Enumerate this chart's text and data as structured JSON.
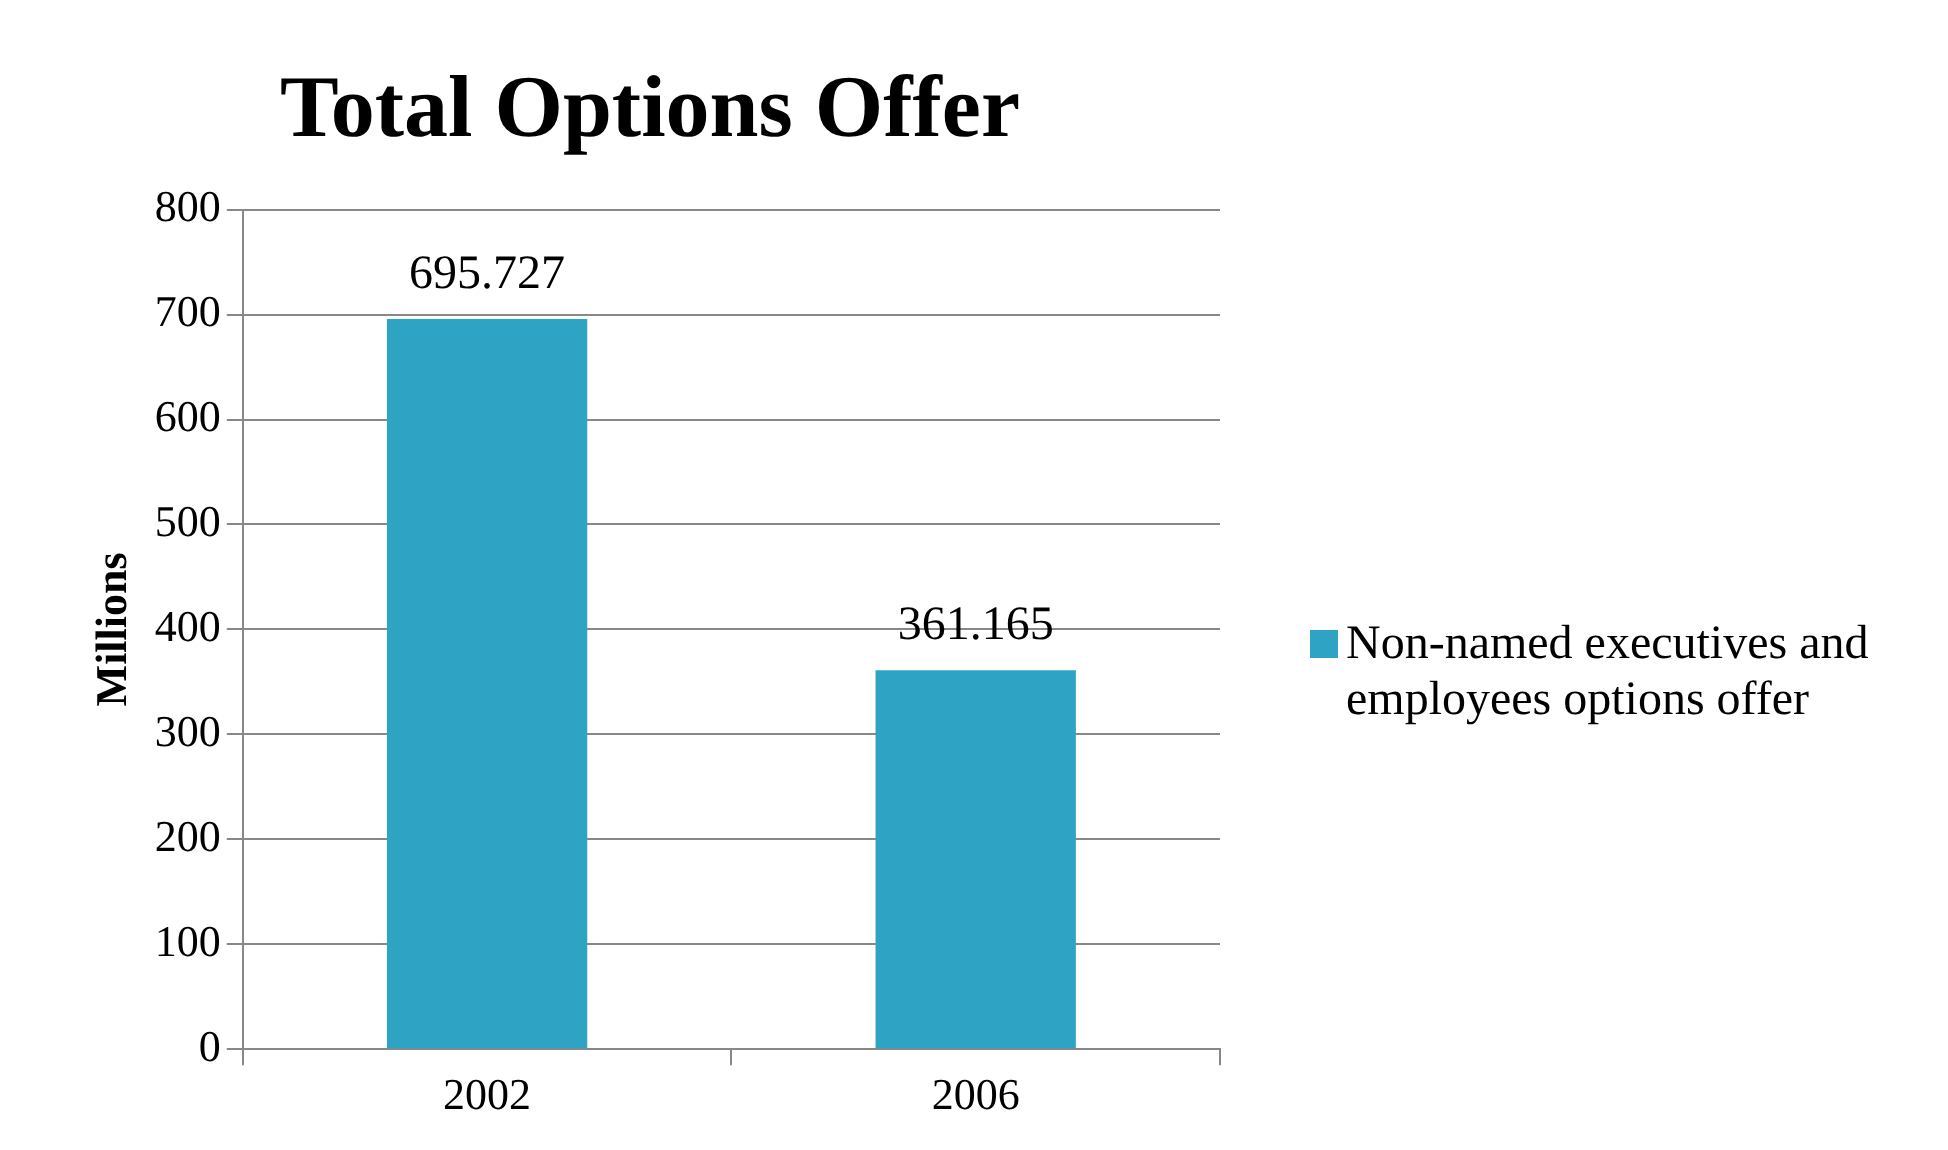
{
  "chart_data": {
    "type": "bar",
    "title": "Total Options Offer",
    "ylabel": "Millions",
    "categories": [
      "2002",
      "2006"
    ],
    "series": [
      {
        "name": "Non-named executives and employees options offer",
        "color": "#2ea3c4",
        "values": [
          695.727,
          361.165
        ]
      }
    ],
    "ylim": [
      0,
      800
    ],
    "yticks": [
      0,
      100,
      200,
      300,
      400,
      500,
      600,
      700,
      800
    ],
    "grid": "y",
    "legend": "right",
    "data_labels": true
  }
}
